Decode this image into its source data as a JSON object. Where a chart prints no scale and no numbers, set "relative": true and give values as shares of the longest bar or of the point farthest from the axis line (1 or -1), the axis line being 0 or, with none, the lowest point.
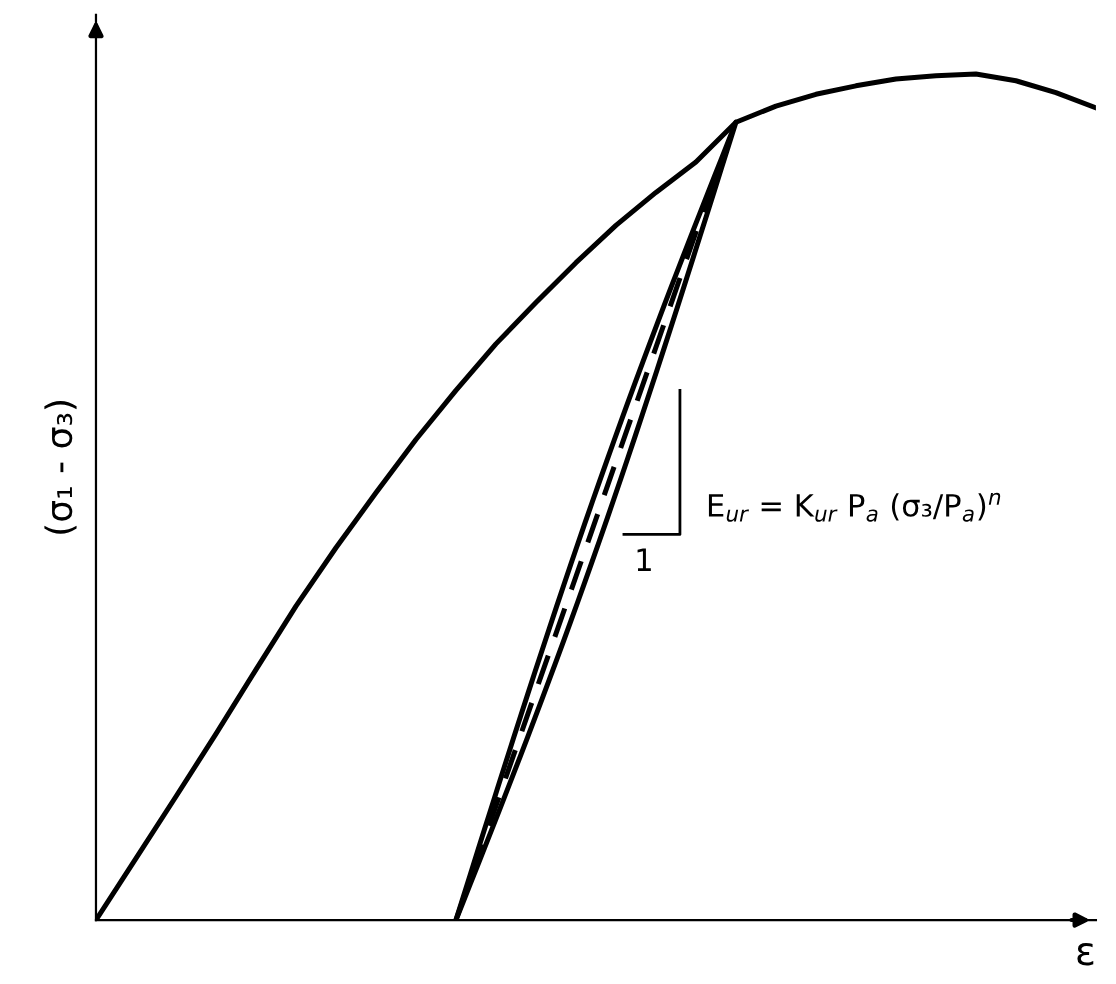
{
  "chart_data": {
    "type": "line",
    "relative": true,
    "xlabel": "ε",
    "ylabel": "(σ₁ - σ₃)",
    "grid": false,
    "legend": false,
    "marker": "none",
    "categories": [
      null,
      null,
      null,
      null,
      null,
      null,
      null,
      null,
      null,
      null,
      null,
      null,
      null,
      null,
      null,
      null,
      null,
      null,
      null,
      null,
      null,
      null,
      null,
      null,
      null,
      null
    ],
    "series": [
      {
        "color": "#000000",
        "line_style": "solid",
        "values": [
          0,
          0.073,
          0.146,
          0.22,
          0.296,
          0.371,
          0.44,
          0.505,
          0.568,
          0.626,
          0.681,
          0.73,
          0.777,
          0.821,
          0.86,
          0.896,
          0.943,
          0.962,
          0.976,
          0.986,
          0.994,
          0.998,
          1.0,
          0.992,
          0.978,
          0.96
        ]
      },
      {
        "color": "#000000",
        "line_style": "dashed",
        "values": [
          null,
          null,
          null,
          null,
          null,
          null,
          null,
          null,
          null,
          0,
          0.135,
          0.271,
          0.406,
          0.542,
          0.677,
          0.813,
          0.943,
          null,
          null,
          null,
          null,
          null,
          null,
          null,
          null,
          null
        ]
      }
    ],
    "annotations": [
      "E$_{ur}$ = K$_{ur}$ P$_{a}$ (σ₃/P$_{a}$)$^{n}$",
      "1"
    ]
  }
}
